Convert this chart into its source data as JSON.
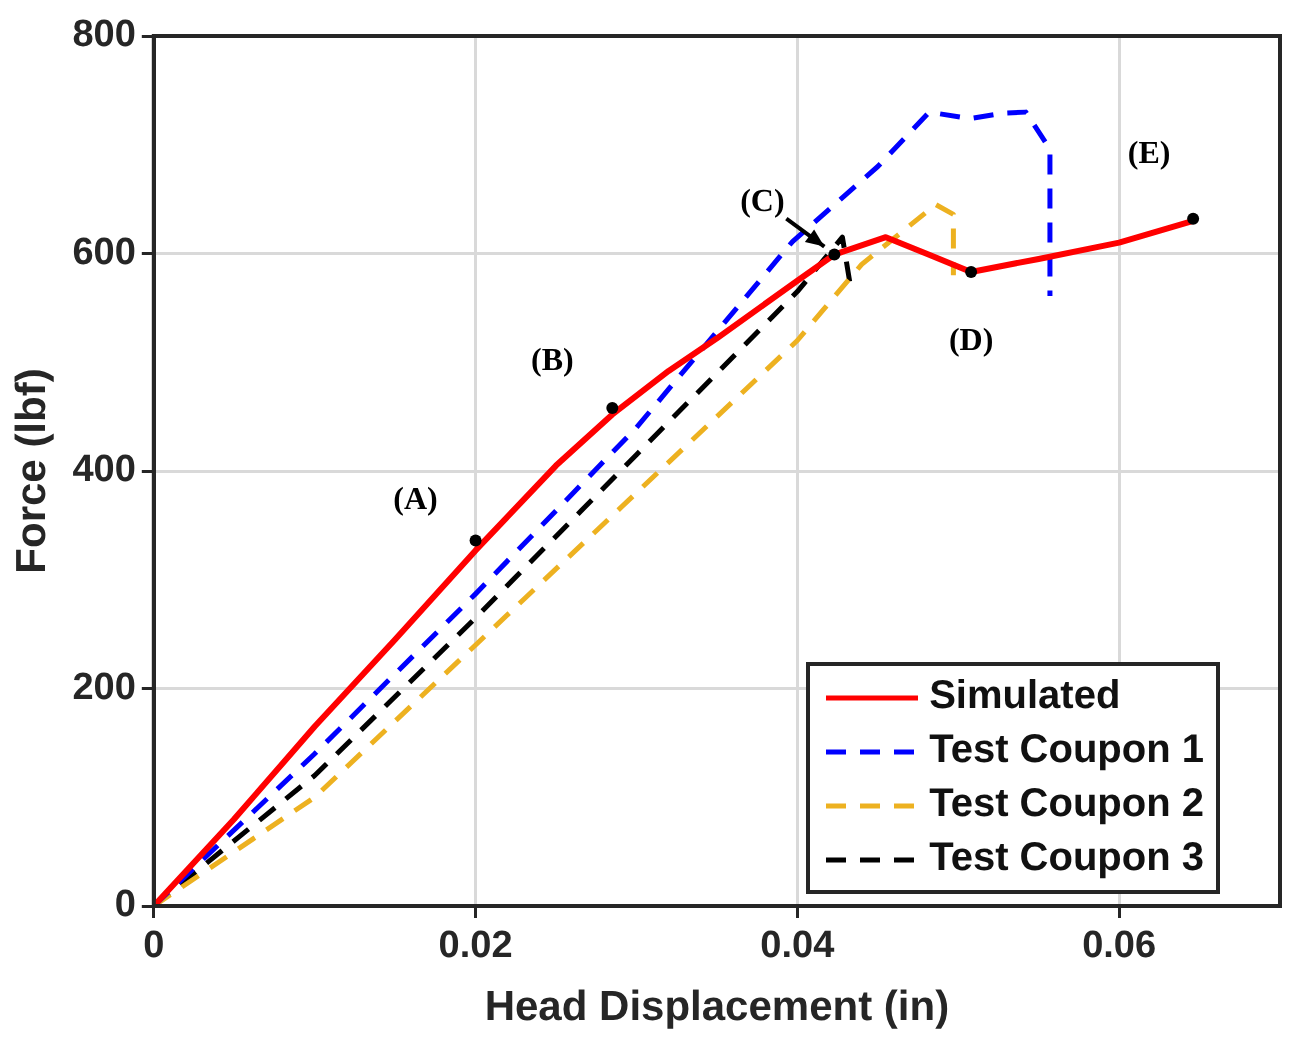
{
  "chart_data": {
    "type": "line",
    "xlabel": "Head Displacement (in)",
    "ylabel": "Force (lbf)",
    "xlim": [
      0,
      0.07
    ],
    "xticks": [
      0,
      0.02,
      0.04,
      0.06
    ],
    "ylim": [
      0,
      800
    ],
    "yticks": [
      0,
      200,
      400,
      600,
      800
    ],
    "grid": true,
    "legend": "bottom right",
    "marker": "none",
    "series": [
      {
        "name": "Simulated",
        "color": "#ff0000",
        "line_style": "solid",
        "x": [
          0,
          0.005,
          0.01,
          0.015,
          0.02,
          0.025,
          0.0285,
          0.032,
          0.035,
          0.04,
          0.0423,
          0.0455,
          0.048,
          0.0508,
          0.055,
          0.06,
          0.0646
        ],
        "values": [
          0,
          80,
          165,
          245,
          327,
          405,
          452,
          492,
          522,
          575,
          599,
          615,
          600,
          583,
          595,
          610,
          630
        ]
      },
      {
        "name": "Test Coupon 1",
        "color": "#0000ff",
        "line_style": "dashed",
        "x": [
          0,
          0.01,
          0.02,
          0.03,
          0.0397,
          0.045,
          0.0482,
          0.0507,
          0.0528,
          0.0542,
          0.0557,
          0.0557
        ],
        "values": [
          0,
          140,
          287,
          440,
          611,
          680,
          730,
          724,
          729,
          730,
          696,
          561
        ]
      },
      {
        "name": "Test Coupon 2",
        "color": "#edb120",
        "line_style": "dashed",
        "x": [
          0,
          0.01,
          0.02,
          0.03,
          0.04,
          0.044,
          0.0486,
          0.0497,
          0.0497
        ],
        "values": [
          0,
          100,
          240,
          380,
          520,
          590,
          645,
          636,
          580
        ]
      },
      {
        "name": "Test Coupon 3",
        "color": "#000000",
        "line_style": "dashed",
        "x": [
          0,
          0.01,
          0.02,
          0.03,
          0.04,
          0.0428,
          0.0433
        ],
        "values": [
          0,
          120,
          265,
          415,
          565,
          615,
          570
        ]
      }
    ],
    "annotations": [
      {
        "text": "(A)",
        "x": 0.02,
        "y": 336
      },
      {
        "text": "(B)",
        "x": 0.0285,
        "y": 458
      },
      {
        "text": "(C)",
        "x": 0.0423,
        "y": 599
      },
      {
        "text": "(D)",
        "x": 0.0508,
        "y": 583
      },
      {
        "text": "(E)",
        "x": 0.0646,
        "y": 632
      }
    ]
  }
}
